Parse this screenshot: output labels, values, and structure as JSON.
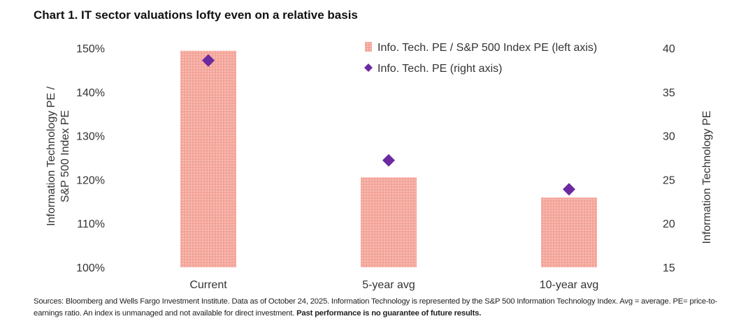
{
  "chart_data": {
    "type": "bar",
    "title": "Chart 1. IT sector valuations lofty even on a relative basis",
    "categories": [
      "Current",
      "5-year avg",
      "10-year avg"
    ],
    "series": [
      {
        "name": "Info. Tech. PE / S&P 500 Index PE (left axis)",
        "type": "bar",
        "axis": "left",
        "values": [
          149.4,
          120.5,
          115.9
        ],
        "color": "#f4a59a"
      },
      {
        "name": "Info. Tech. PE (right axis)",
        "type": "scatter",
        "axis": "right",
        "values": [
          38.6,
          27.2,
          23.9
        ],
        "color": "#6b2aa0"
      }
    ],
    "ylabel": "Information Technology PE / S&P 500 Index PE",
    "y2label": "Information Technology PE",
    "ylim": [
      100,
      150
    ],
    "y2lim": [
      15,
      40
    ],
    "yticks": [
      "100%",
      "110%",
      "120%",
      "130%",
      "140%",
      "150%"
    ],
    "y2ticks": [
      "15",
      "20",
      "25",
      "30",
      "35",
      "40"
    ],
    "grid": false,
    "legend": "top-right"
  },
  "footer": {
    "text": "Sources: Bloomberg and Wells Fargo Investment Institute. Data as of October 24, 2025. Information Technology is represented by the S&P 500 Information Technology Index. Avg = average. PE= price-to-earnings ratio. An index is unmanaged and not available for direct investment. ",
    "bold": "Past performance is no guarantee of future results."
  }
}
